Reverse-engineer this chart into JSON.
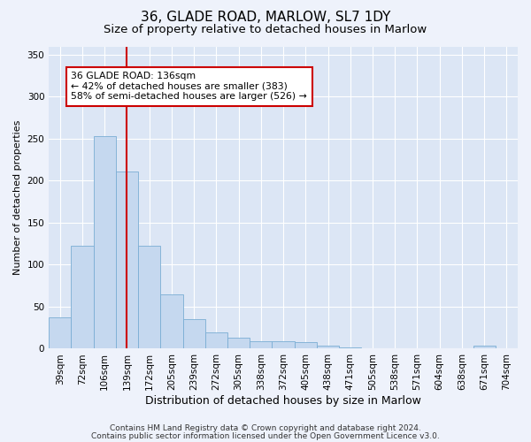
{
  "title1": "36, GLADE ROAD, MARLOW, SL7 1DY",
  "title2": "Size of property relative to detached houses in Marlow",
  "xlabel": "Distribution of detached houses by size in Marlow",
  "ylabel": "Number of detached properties",
  "categories": [
    "39sqm",
    "72sqm",
    "106sqm",
    "139sqm",
    "172sqm",
    "205sqm",
    "239sqm",
    "272sqm",
    "305sqm",
    "338sqm",
    "372sqm",
    "405sqm",
    "438sqm",
    "471sqm",
    "505sqm",
    "538sqm",
    "571sqm",
    "604sqm",
    "638sqm",
    "671sqm",
    "704sqm"
  ],
  "values": [
    37,
    123,
    253,
    211,
    123,
    65,
    35,
    19,
    13,
    9,
    9,
    8,
    4,
    2,
    1,
    1,
    1,
    1,
    1,
    4,
    0
  ],
  "bar_color": "#c5d8ef",
  "bar_edge_color": "#7aadd4",
  "vline_x_index": 3,
  "vline_color": "#cc0000",
  "ylim": [
    0,
    360
  ],
  "yticks": [
    0,
    50,
    100,
    150,
    200,
    250,
    300,
    350
  ],
  "annotation_line1": "36 GLADE ROAD: 136sqm",
  "annotation_line2": "← 42% of detached houses are smaller (383)",
  "annotation_line3": "58% of semi-detached houses are larger (526) →",
  "annotation_box_color": "#ffffff",
  "annotation_box_edge": "#cc0000",
  "footer1": "Contains HM Land Registry data © Crown copyright and database right 2024.",
  "footer2": "Contains public sector information licensed under the Open Government Licence v3.0.",
  "background_color": "#eef2fb",
  "plot_bg_color": "#dce6f5",
  "grid_color": "#ffffff",
  "title1_fontsize": 11,
  "title2_fontsize": 9.5,
  "xlabel_fontsize": 9,
  "ylabel_fontsize": 8,
  "tick_fontsize": 7.5,
  "footer_fontsize": 6.5
}
